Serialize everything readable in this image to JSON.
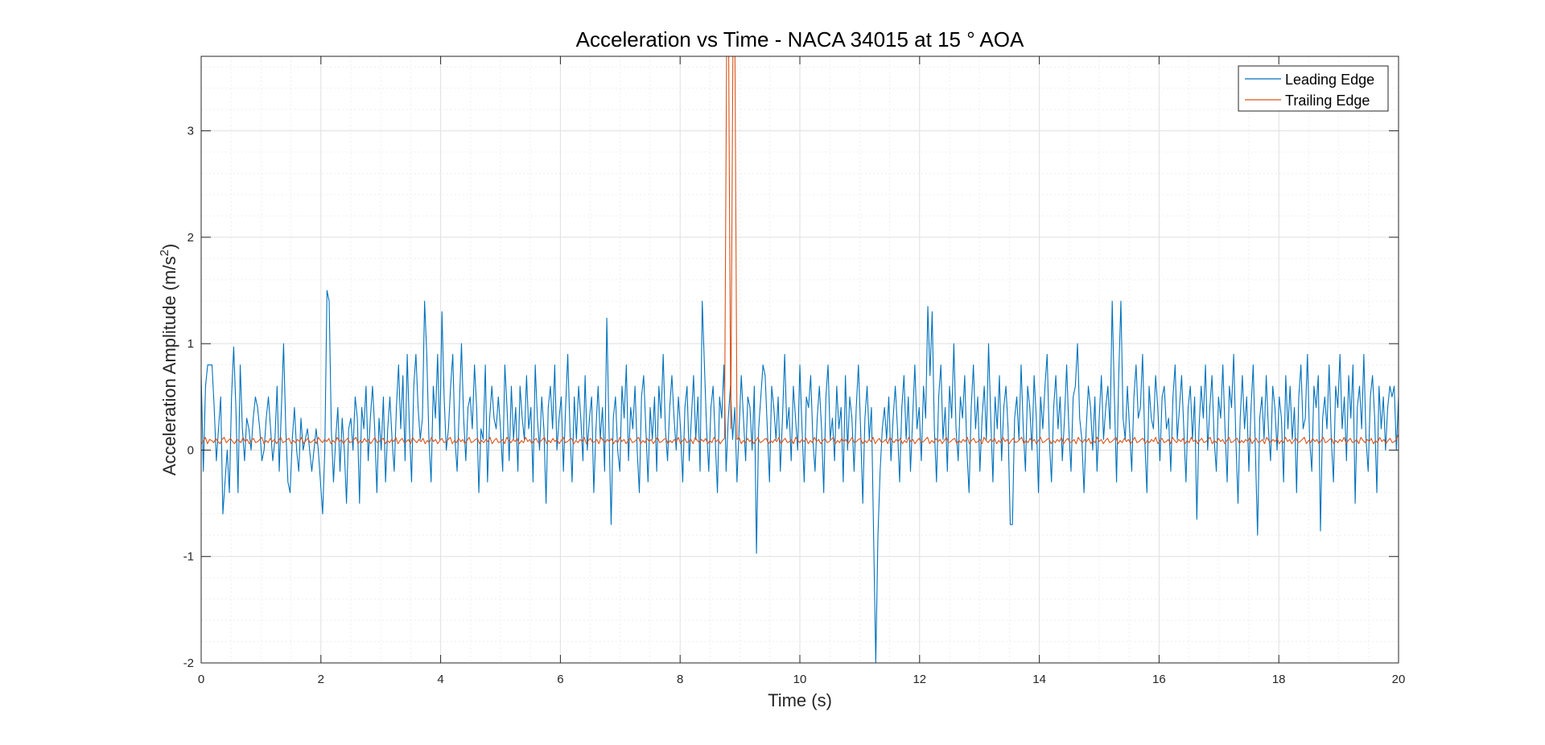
{
  "chart_data": {
    "type": "line",
    "title": "Acceleration vs Time - NACA 34015 at 15 ° AOA",
    "xlabel": "Time (s)",
    "ylabel": "Acceleration Amplitude (m/s",
    "ylabel_superscript": "2",
    "ylabel_suffix": ")",
    "xlim": [
      0,
      20
    ],
    "ylim": [
      -2,
      3.7
    ],
    "xticks": [
      0,
      2,
      4,
      6,
      8,
      10,
      12,
      14,
      16,
      18,
      20
    ],
    "yticks": [
      -2,
      -1,
      0,
      1,
      2,
      3
    ],
    "grid": true,
    "minor_grid": true,
    "legend_position": "top-right",
    "colors": {
      "leading": "#0072BD",
      "trailing": "#D95319",
      "axis": "#262626",
      "grid": "#dfdfdf",
      "minor_grid": "#efefef"
    },
    "series": [
      {
        "name": "Leading Edge",
        "sample_interval": 0.0333,
        "values": [
          0.7,
          -0.2,
          0.6,
          0.8,
          0.8,
          0.8,
          0.4,
          -0.1,
          0.2,
          0.5,
          -0.6,
          -0.3,
          0.0,
          -0.4,
          0.5,
          0.97,
          0.4,
          -0.4,
          0.8,
          0.2,
          -0.1,
          0.3,
          0.2,
          0.0,
          0.3,
          0.5,
          0.4,
          0.2,
          -0.1,
          0.0,
          0.3,
          0.5,
          0.2,
          -0.1,
          0.1,
          0.6,
          -0.2,
          0.4,
          1.0,
          0.2,
          -0.3,
          -0.4,
          0.1,
          0.4,
          0.0,
          -0.2,
          0.3,
          0.0,
          0.1,
          0.2,
          0.0,
          -0.2,
          0.0,
          0.2,
          0.0,
          -0.3,
          -0.6,
          0.0,
          1.5,
          1.4,
          0.2,
          -0.3,
          0.1,
          0.4,
          -0.2,
          0.3,
          0.0,
          -0.5,
          0.2,
          0.3,
          0.0,
          0.5,
          0.3,
          -0.5,
          0.4,
          0.2,
          0.6,
          -0.1,
          0.3,
          0.6,
          0.2,
          -0.4,
          0.3,
          0.0,
          0.5,
          -0.3,
          0.2,
          0.5,
          0.1,
          -0.2,
          0.4,
          0.8,
          0.2,
          0.7,
          -0.1,
          0.9,
          0.2,
          -0.3,
          0.6,
          0.9,
          0.4,
          0.1,
          0.3,
          1.4,
          0.9,
          0.1,
          -0.3,
          0.6,
          0.3,
          0.9,
          0.1,
          1.3,
          0.5,
          0.0,
          0.2,
          0.6,
          0.9,
          0.1,
          -0.2,
          0.4,
          1.0,
          0.3,
          -0.1,
          0.4,
          0.5,
          0.2,
          0.8,
          0.4,
          -0.4,
          0.2,
          0.1,
          0.8,
          -0.3,
          0.3,
          0.6,
          0.3,
          0.2,
          0.5,
          0.2,
          -0.2,
          0.8,
          0.4,
          -0.1,
          0.6,
          0.1,
          0.4,
          -0.2,
          0.6,
          0.3,
          0.1,
          0.7,
          0.2,
          0.4,
          -0.3,
          0.8,
          0.3,
          0.0,
          0.5,
          0.2,
          -0.5,
          0.4,
          0.6,
          0.2,
          0.8,
          0.0,
          0.3,
          0.5,
          -0.2,
          0.4,
          0.9,
          0.2,
          -0.3,
          0.5,
          0.1,
          0.6,
          0.3,
          -0.1,
          0.7,
          0.0,
          0.3,
          0.5,
          -0.4,
          0.2,
          0.6,
          0.1,
          0.4,
          -0.2,
          1.24,
          0.2,
          -0.7,
          0.3,
          0.5,
          0.0,
          -0.2,
          0.6,
          0.3,
          0.8,
          -0.1,
          0.4,
          0.2,
          0.6,
          0.0,
          -0.4,
          0.5,
          0.7,
          0.2,
          -0.3,
          0.4,
          0.1,
          0.5,
          -0.2,
          0.6,
          0.3,
          0.9,
          0.2,
          -0.1,
          0.4,
          0.7,
          0.3,
          0.0,
          0.5,
          0.2,
          -0.3,
          0.4,
          0.6,
          -0.1,
          0.3,
          0.7,
          0.1,
          0.5,
          -0.2,
          1.4,
          0.8,
          0.2,
          -0.2,
          0.4,
          0.6,
          0.1,
          -0.4,
          0.5,
          0.3,
          0.8,
          -0.2,
          0.3,
          0.6,
          0.1,
          0.4,
          -0.3,
          0.2,
          0.7,
          0.3,
          -0.1,
          0.5,
          0.4,
          0.0,
          0.6,
          -0.97,
          0.2,
          0.5,
          0.8,
          0.7,
          0.2,
          -0.3,
          0.6,
          0.4,
          0.1,
          0.5,
          -0.2,
          0.3,
          0.9,
          0.2,
          0.4,
          -0.1,
          0.6,
          0.3,
          0.0,
          0.8,
          0.2,
          -0.3,
          0.5,
          0.4,
          0.7,
          0.1,
          -0.2,
          0.3,
          0.6,
          0.2,
          -0.4,
          0.5,
          0.8,
          0.1,
          0.3,
          -0.1,
          0.6,
          0.2,
          0.4,
          -0.3,
          0.7,
          0.0,
          0.5,
          0.3,
          -0.2,
          0.4,
          0.8,
          0.2,
          -0.5,
          0.3,
          0.6,
          0.1,
          0.4,
          -0.8,
          -2.0,
          -0.8,
          -0.2,
          0.2,
          0.4,
          0.1,
          0.5,
          -0.1,
          0.3,
          0.6,
          0.2,
          -0.3,
          0.4,
          0.7,
          0.1,
          0.5,
          -0.2,
          0.3,
          0.8,
          0.2,
          0.4,
          -0.1,
          0.6,
          0.3,
          1.35,
          0.7,
          1.3,
          0.2,
          -0.3,
          0.5,
          0.8,
          0.1,
          0.4,
          -0.2,
          0.6,
          0.3,
          1.0,
          0.2,
          -0.1,
          0.5,
          0.3,
          0.7,
          0.0,
          -0.4,
          0.4,
          0.8,
          0.2,
          0.5,
          -0.2,
          0.3,
          0.6,
          0.1,
          1.0,
          0.3,
          -0.3,
          0.5,
          0.2,
          0.7,
          -0.1,
          0.4,
          0.6,
          0.2,
          -0.7,
          -0.7,
          0.3,
          0.5,
          0.1,
          0.8,
          0.2,
          -0.2,
          0.6,
          0.4,
          0.0,
          0.7,
          0.3,
          -0.4,
          0.5,
          0.2,
          0.6,
          0.9,
          0.1,
          -0.3,
          0.4,
          0.7,
          0.2,
          0.5,
          -0.1,
          0.3,
          0.8,
          0.2,
          -0.2,
          0.5,
          0.6,
          1.0,
          0.3,
          0.1,
          -0.4,
          0.2,
          0.6,
          0.4,
          0.0,
          0.5,
          -0.2,
          0.3,
          0.7,
          0.1,
          0.4,
          0.6,
          0.2,
          1.4,
          0.5,
          -0.3,
          0.7,
          1.4,
          0.3,
          0.1,
          0.6,
          0.2,
          -0.2,
          0.5,
          0.8,
          0.3,
          0.4,
          0.9,
          0.1,
          -0.4,
          0.6,
          0.3,
          0.2,
          0.7,
          0.4,
          -0.1,
          0.5,
          0.6,
          0.2,
          0.3,
          -0.2,
          0.5,
          0.8,
          0.1,
          0.4,
          0.7,
          0.2,
          -0.3,
          0.4,
          0.6,
          0.1,
          0.5,
          -0.65,
          0.2,
          0.6,
          0.3,
          0.8,
          0.0,
          0.4,
          0.7,
          0.1,
          -0.2,
          0.5,
          0.3,
          0.8,
          0.2,
          -0.3,
          0.6,
          0.4,
          0.9,
          0.1,
          -0.5,
          0.3,
          0.7,
          0.2,
          0.5,
          -0.2,
          0.4,
          0.8,
          0.0,
          -0.8,
          0.3,
          0.5,
          0.1,
          0.7,
          0.2,
          -0.1,
          0.6,
          0.4,
          0.0,
          0.5,
          0.3,
          -0.3,
          0.7,
          0.2,
          0.6,
          0.1,
          0.4,
          -0.4,
          0.5,
          0.8,
          0.2,
          0.3,
          0.9,
          0.1,
          -0.2,
          0.6,
          0.4,
          0.7,
          -0.76,
          0.3,
          0.5,
          0.2,
          0.8,
          0.1,
          -0.3,
          0.6,
          0.4,
          0.9,
          0.2,
          0.5,
          -0.1,
          0.7,
          0.3,
          0.8,
          -0.5,
          0.4,
          0.6,
          0.2,
          0.9,
          0.1,
          -0.2,
          0.5,
          0.7,
          0.3,
          -0.4,
          0.6,
          0.2,
          0.5,
          0.0,
          0.4,
          0.6,
          0.5,
          0.6,
          0.0,
          0.5
        ]
      },
      {
        "name": "Trailing Edge",
        "sample_interval": 0.0333,
        "values": [
          0.06,
          0.08,
          0.12,
          0.06,
          0.1,
          0.09,
          0.07,
          0.11,
          0.08,
          0.06,
          0.1,
          0.12,
          0.07,
          0.09,
          0.11,
          0.08,
          0.06,
          0.1,
          0.09,
          0.07,
          0.12,
          0.08,
          0.1,
          0.06,
          0.09,
          0.11,
          0.07,
          0.08,
          0.1,
          0.12,
          0.06,
          0.09,
          0.07,
          0.11,
          0.08,
          0.1,
          0.06,
          0.09,
          0.12,
          0.07,
          0.08,
          0.1,
          0.11,
          0.06,
          0.09,
          0.07,
          0.1,
          0.08,
          0.12,
          0.06,
          0.09,
          0.11,
          0.07,
          0.08,
          0.1,
          0.06,
          0.12,
          0.09,
          0.07,
          0.1,
          0.08,
          0.11,
          0.06,
          0.09,
          0.07,
          0.12,
          0.08,
          0.1,
          0.06,
          0.09,
          0.11,
          0.07,
          0.08,
          0.1,
          0.12,
          0.06,
          0.09,
          0.07,
          0.11,
          0.08,
          0.1,
          0.06,
          0.09,
          0.12,
          0.07,
          0.08,
          0.1,
          0.11,
          0.06,
          0.09,
          0.07,
          0.1,
          0.08,
          0.12,
          0.06,
          0.09,
          0.11,
          0.07,
          0.08,
          0.1,
          0.06,
          0.12,
          0.09,
          0.07,
          0.1,
          0.08,
          0.11,
          0.06,
          0.09,
          0.07,
          0.12,
          0.08,
          0.1,
          0.06,
          0.09,
          0.11,
          0.07,
          0.08,
          0.1,
          0.12,
          0.06,
          0.09,
          0.07,
          0.11,
          0.08,
          0.1,
          0.06,
          0.09,
          0.12,
          0.07,
          0.08,
          0.1,
          0.11,
          0.06,
          0.09,
          0.07,
          0.1,
          0.08,
          0.12,
          0.06,
          0.09,
          0.11,
          0.07,
          0.08,
          0.1,
          0.06,
          0.12,
          0.09,
          0.07,
          0.1,
          0.08,
          0.11,
          0.06,
          0.09,
          0.07,
          0.12,
          0.08,
          0.1,
          0.06,
          0.09,
          0.11,
          0.07,
          0.08,
          0.1,
          0.12,
          0.06,
          0.09,
          0.07,
          0.11,
          0.08,
          0.1,
          0.06,
          0.09,
          0.12,
          0.07,
          0.08,
          0.1,
          0.11,
          0.06,
          0.09,
          0.07,
          0.1,
          0.08,
          0.12,
          0.06,
          0.09,
          0.11,
          0.07,
          0.08,
          0.1,
          0.06,
          0.12,
          0.09,
          0.07,
          0.1,
          0.08,
          0.11,
          0.06,
          0.09,
          0.07,
          0.12,
          0.08,
          0.1,
          0.06,
          0.09,
          0.11,
          0.07,
          0.08,
          0.1,
          0.12,
          0.06,
          0.09,
          0.07,
          0.11,
          0.08,
          0.1,
          0.06,
          0.09,
          0.12,
          0.07,
          0.08,
          0.1,
          0.11,
          0.06,
          0.09,
          0.07,
          0.1,
          0.08,
          0.12,
          0.06,
          0.09,
          0.11,
          0.07,
          0.08,
          0.1,
          0.06,
          0.12,
          0.09,
          0.07,
          0.1,
          0.08,
          0.11,
          0.06,
          0.09,
          0.07,
          0.12,
          0.08,
          0.1,
          0.06,
          0.09,
          0.11,
          3.7,
          3.7,
          0.2,
          3.7,
          3.7,
          0.1,
          0.12,
          0.06,
          0.09,
          0.07,
          0.11,
          0.08,
          0.1,
          0.06,
          0.09,
          0.12,
          0.07,
          0.08,
          0.1,
          0.11,
          0.06,
          0.09,
          0.07,
          0.1,
          0.08,
          0.12,
          0.06,
          0.09,
          0.11,
          0.07,
          0.08,
          0.1,
          0.06,
          0.12,
          0.09,
          0.07,
          0.1,
          0.08,
          0.11,
          0.06,
          0.09,
          0.07,
          0.12,
          0.08,
          0.1,
          0.06,
          0.09,
          0.11,
          0.07,
          0.08,
          0.1,
          0.12,
          0.06,
          0.09,
          0.07,
          0.11,
          0.08,
          0.1,
          0.06,
          0.09,
          0.12,
          0.07,
          0.08,
          0.1,
          0.11,
          0.06,
          0.09,
          0.07,
          0.1,
          0.08,
          0.12,
          0.06,
          0.09,
          0.11,
          0.07,
          0.08,
          0.1,
          0.06,
          0.12,
          0.09,
          0.07,
          0.1,
          0.08,
          0.11,
          0.06,
          0.09,
          0.07,
          0.12,
          0.08,
          0.1,
          0.06,
          0.09,
          0.11,
          0.07,
          0.08,
          0.1,
          0.12,
          0.06,
          0.09,
          0.07,
          0.11,
          0.08,
          0.1,
          0.06,
          0.09,
          0.12,
          0.07,
          0.08,
          0.1,
          0.11,
          0.06,
          0.09,
          0.07,
          0.1,
          0.08,
          0.12,
          0.06,
          0.09,
          0.11,
          0.07,
          0.08,
          0.1,
          0.06,
          0.12,
          0.09,
          0.07,
          0.1,
          0.08,
          0.11,
          0.06,
          0.09,
          0.07,
          0.12,
          0.08,
          0.1,
          0.06,
          0.09,
          0.11,
          0.07,
          0.08,
          0.1,
          0.12,
          0.06,
          0.09,
          0.07,
          0.11,
          0.08,
          0.1,
          0.06,
          0.09,
          0.12,
          0.07,
          0.08,
          0.1,
          0.11,
          0.06,
          0.09,
          0.07,
          0.1,
          0.08,
          0.12,
          0.06,
          0.09,
          0.11,
          0.07,
          0.08,
          0.1,
          0.06,
          0.12,
          0.09,
          0.07,
          0.1,
          0.08,
          0.11,
          0.06,
          0.09,
          0.07,
          0.12,
          0.08,
          0.1,
          0.06,
          0.09,
          0.11,
          0.07,
          0.08,
          0.1,
          0.12,
          0.06,
          0.09,
          0.07,
          0.11,
          0.08,
          0.1,
          0.06,
          0.09,
          0.12,
          0.07,
          0.08,
          0.1,
          0.11,
          0.06,
          0.09,
          0.07,
          0.1,
          0.08,
          0.12,
          0.06,
          0.09,
          0.11,
          0.07,
          0.08,
          0.1,
          0.06,
          0.12,
          0.09,
          0.07,
          0.1,
          0.08,
          0.11,
          0.06,
          0.09,
          0.07,
          0.12,
          0.08,
          0.1,
          0.06,
          0.09,
          0.11,
          0.07,
          0.08,
          0.1,
          0.12,
          0.06,
          0.09,
          0.07,
          0.11,
          0.08,
          0.1,
          0.06,
          0.09,
          0.12,
          0.07,
          0.08,
          0.1,
          0.11,
          0.06,
          0.09,
          0.07,
          0.1,
          0.08,
          0.12,
          0.06,
          0.09,
          0.11,
          0.07,
          0.08,
          0.1,
          0.06,
          0.12,
          0.09,
          0.07,
          0.1,
          0.08,
          0.11,
          0.06,
          0.09,
          0.07,
          0.12,
          0.08,
          0.1,
          0.06,
          0.09,
          0.11,
          0.07,
          0.08,
          0.1,
          0.12,
          0.06,
          0.09,
          0.07,
          0.11,
          0.08,
          0.1,
          0.06,
          0.09,
          0.12,
          0.07,
          0.08,
          0.1,
          0.11,
          0.06,
          0.09,
          0.07,
          0.1,
          0.08,
          0.12,
          0.06,
          0.09,
          0.11,
          0.07,
          0.08,
          0.1,
          0.06,
          0.12,
          0.09,
          0.07,
          0.1,
          0.08,
          0.11,
          0.06,
          0.09,
          0.07,
          0.12,
          0.08,
          0.1,
          0.06,
          0.09,
          0.11,
          0.07,
          0.08,
          0.1,
          0.15
        ]
      }
    ]
  }
}
